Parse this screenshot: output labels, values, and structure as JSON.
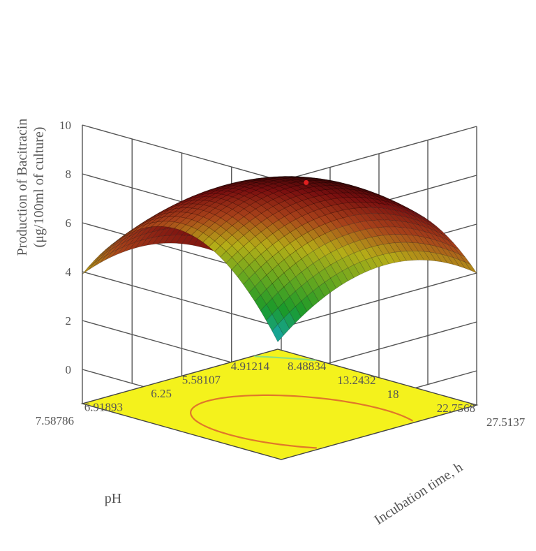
{
  "chart_data": {
    "type": "surface3d",
    "title": "",
    "zlabel_line1": "Production of Bacitracin",
    "zlabel_line2": "(μg/100ml of culture)",
    "xlabel": "Incubation time, h",
    "ylabel": "pH",
    "x_ticks": [
      "8.48834",
      "13.2432",
      "18",
      "22.7568",
      "27.5137"
    ],
    "y_ticks": [
      "4.91214",
      "5.58107",
      "6.25",
      "6.91893",
      "7.58786"
    ],
    "z_ticks": [
      "0",
      "2",
      "4",
      "6",
      "8",
      "10"
    ],
    "xlim": [
      8.48834,
      27.5137
    ],
    "ylim": [
      4.91214,
      7.58786
    ],
    "zlim": [
      0,
      10
    ],
    "surface_corners": [
      {
        "x": 8.48834,
        "y": 4.91214,
        "z": -1.1
      },
      {
        "x": 27.5137,
        "y": 4.91214,
        "z": 4.0
      },
      {
        "x": 8.48834,
        "y": 7.58786,
        "z": 3.9
      },
      {
        "x": 27.5137,
        "y": 7.58786,
        "z": 7.7
      }
    ],
    "optimum": {
      "x": 22.3,
      "y": 6.5,
      "z": 8.4
    },
    "colorscale": [
      "#16a8b8",
      "#1b9a2a",
      "#6aa81f",
      "#b5ad18",
      "#a8421a",
      "#7a0f0f",
      "#2a0404"
    ],
    "floor_color": "#f4f21c",
    "contour_colors": [
      "#e0772a",
      "#8fe07a"
    ],
    "grid": true
  }
}
